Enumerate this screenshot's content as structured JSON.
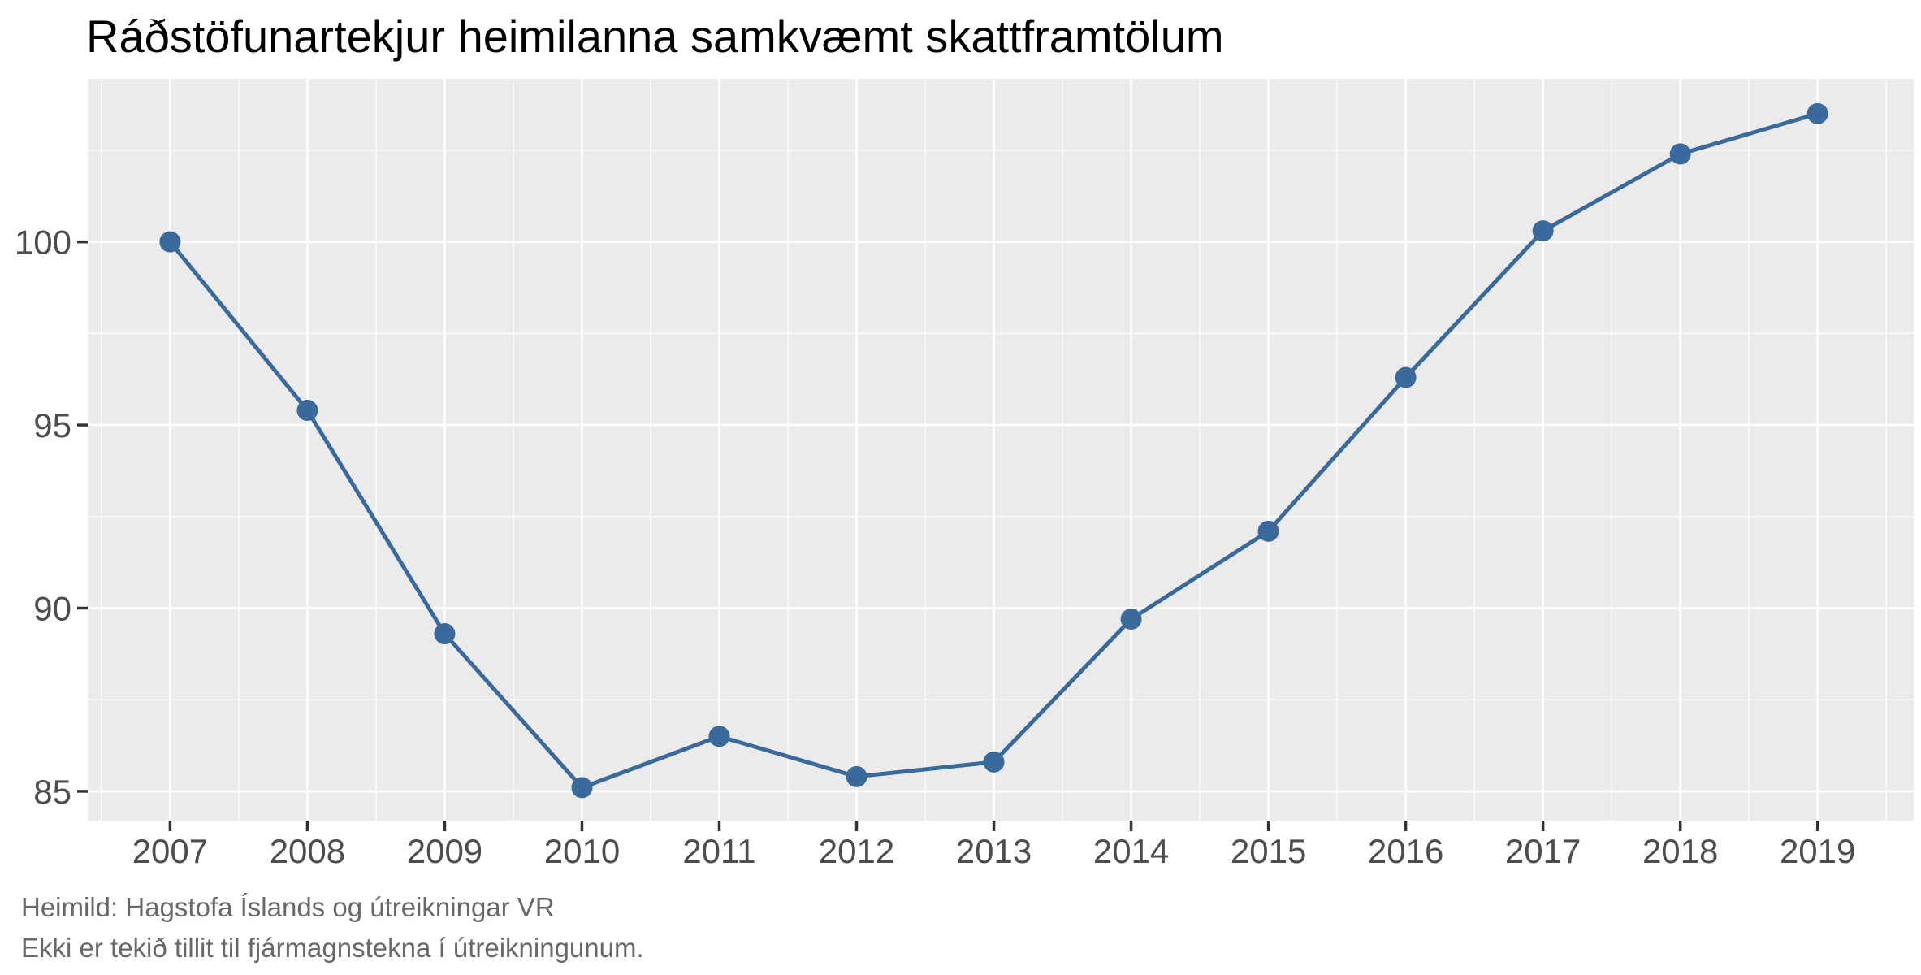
{
  "chart_data": {
    "type": "line",
    "title": "Ráðstöfunartekjur heimilanna samkvæmt skattframtölum",
    "x": [
      2007,
      2008,
      2009,
      2010,
      2011,
      2012,
      2013,
      2014,
      2015,
      2016,
      2017,
      2018,
      2019
    ],
    "y": [
      100.0,
      95.4,
      89.3,
      85.1,
      86.5,
      85.4,
      85.8,
      89.7,
      92.1,
      96.3,
      100.3,
      102.4,
      103.5
    ],
    "xlabel": "",
    "ylabel": "",
    "x_ticks": [
      2007,
      2008,
      2009,
      2010,
      2011,
      2012,
      2013,
      2014,
      2015,
      2016,
      2017,
      2018,
      2019
    ],
    "y_ticks": [
      85,
      90,
      95,
      100
    ],
    "xlim": [
      2006.4,
      2019.7
    ],
    "ylim": [
      84.2,
      104.45
    ],
    "grid": "major-and-minor-white-on-gray",
    "legend": "none",
    "marker": "filled-circle"
  },
  "footer": {
    "line1": "Heimild: Hagstofa Íslands og útreikningar VR",
    "line2": "Ekki er tekið tillit til fjármagnstekna í útreikningunum."
  },
  "colors": {
    "series": "#3A6A9C",
    "panel_background": "#EBEBEB",
    "gridline": "#FFFFFF",
    "axis_text": "#4D4D4D",
    "tick_mark": "#333333",
    "title_text": "#000000",
    "caption_text": "#686868"
  }
}
